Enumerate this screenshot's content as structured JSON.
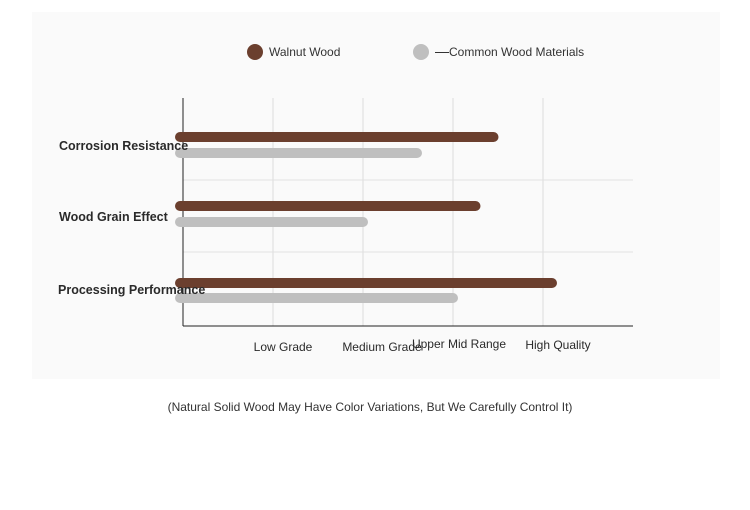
{
  "chart_data": {
    "type": "bar",
    "orientation": "horizontal",
    "categories": [
      "Corrosion Resistance",
      "Wood Grain Effect",
      "Processing Performance"
    ],
    "x_ticks": [
      "",
      "Low Grade",
      "Medium Grade",
      "Upper Mid Range",
      "High Quality",
      ""
    ],
    "xlim": [
      0,
      5
    ],
    "grid": true,
    "legend_position": "top",
    "series": [
      {
        "name": "Walnut Wood",
        "color": "#6b3f2e",
        "values": [
          3.45,
          3.25,
          4.1
        ]
      },
      {
        "name": "Common Wood Materials",
        "color": "#bfbfbf",
        "values": [
          2.6,
          2.0,
          3.0
        ]
      }
    ],
    "caption": "(Natural Solid Wood May Have Color Variations, But We Carefully Control It)"
  }
}
